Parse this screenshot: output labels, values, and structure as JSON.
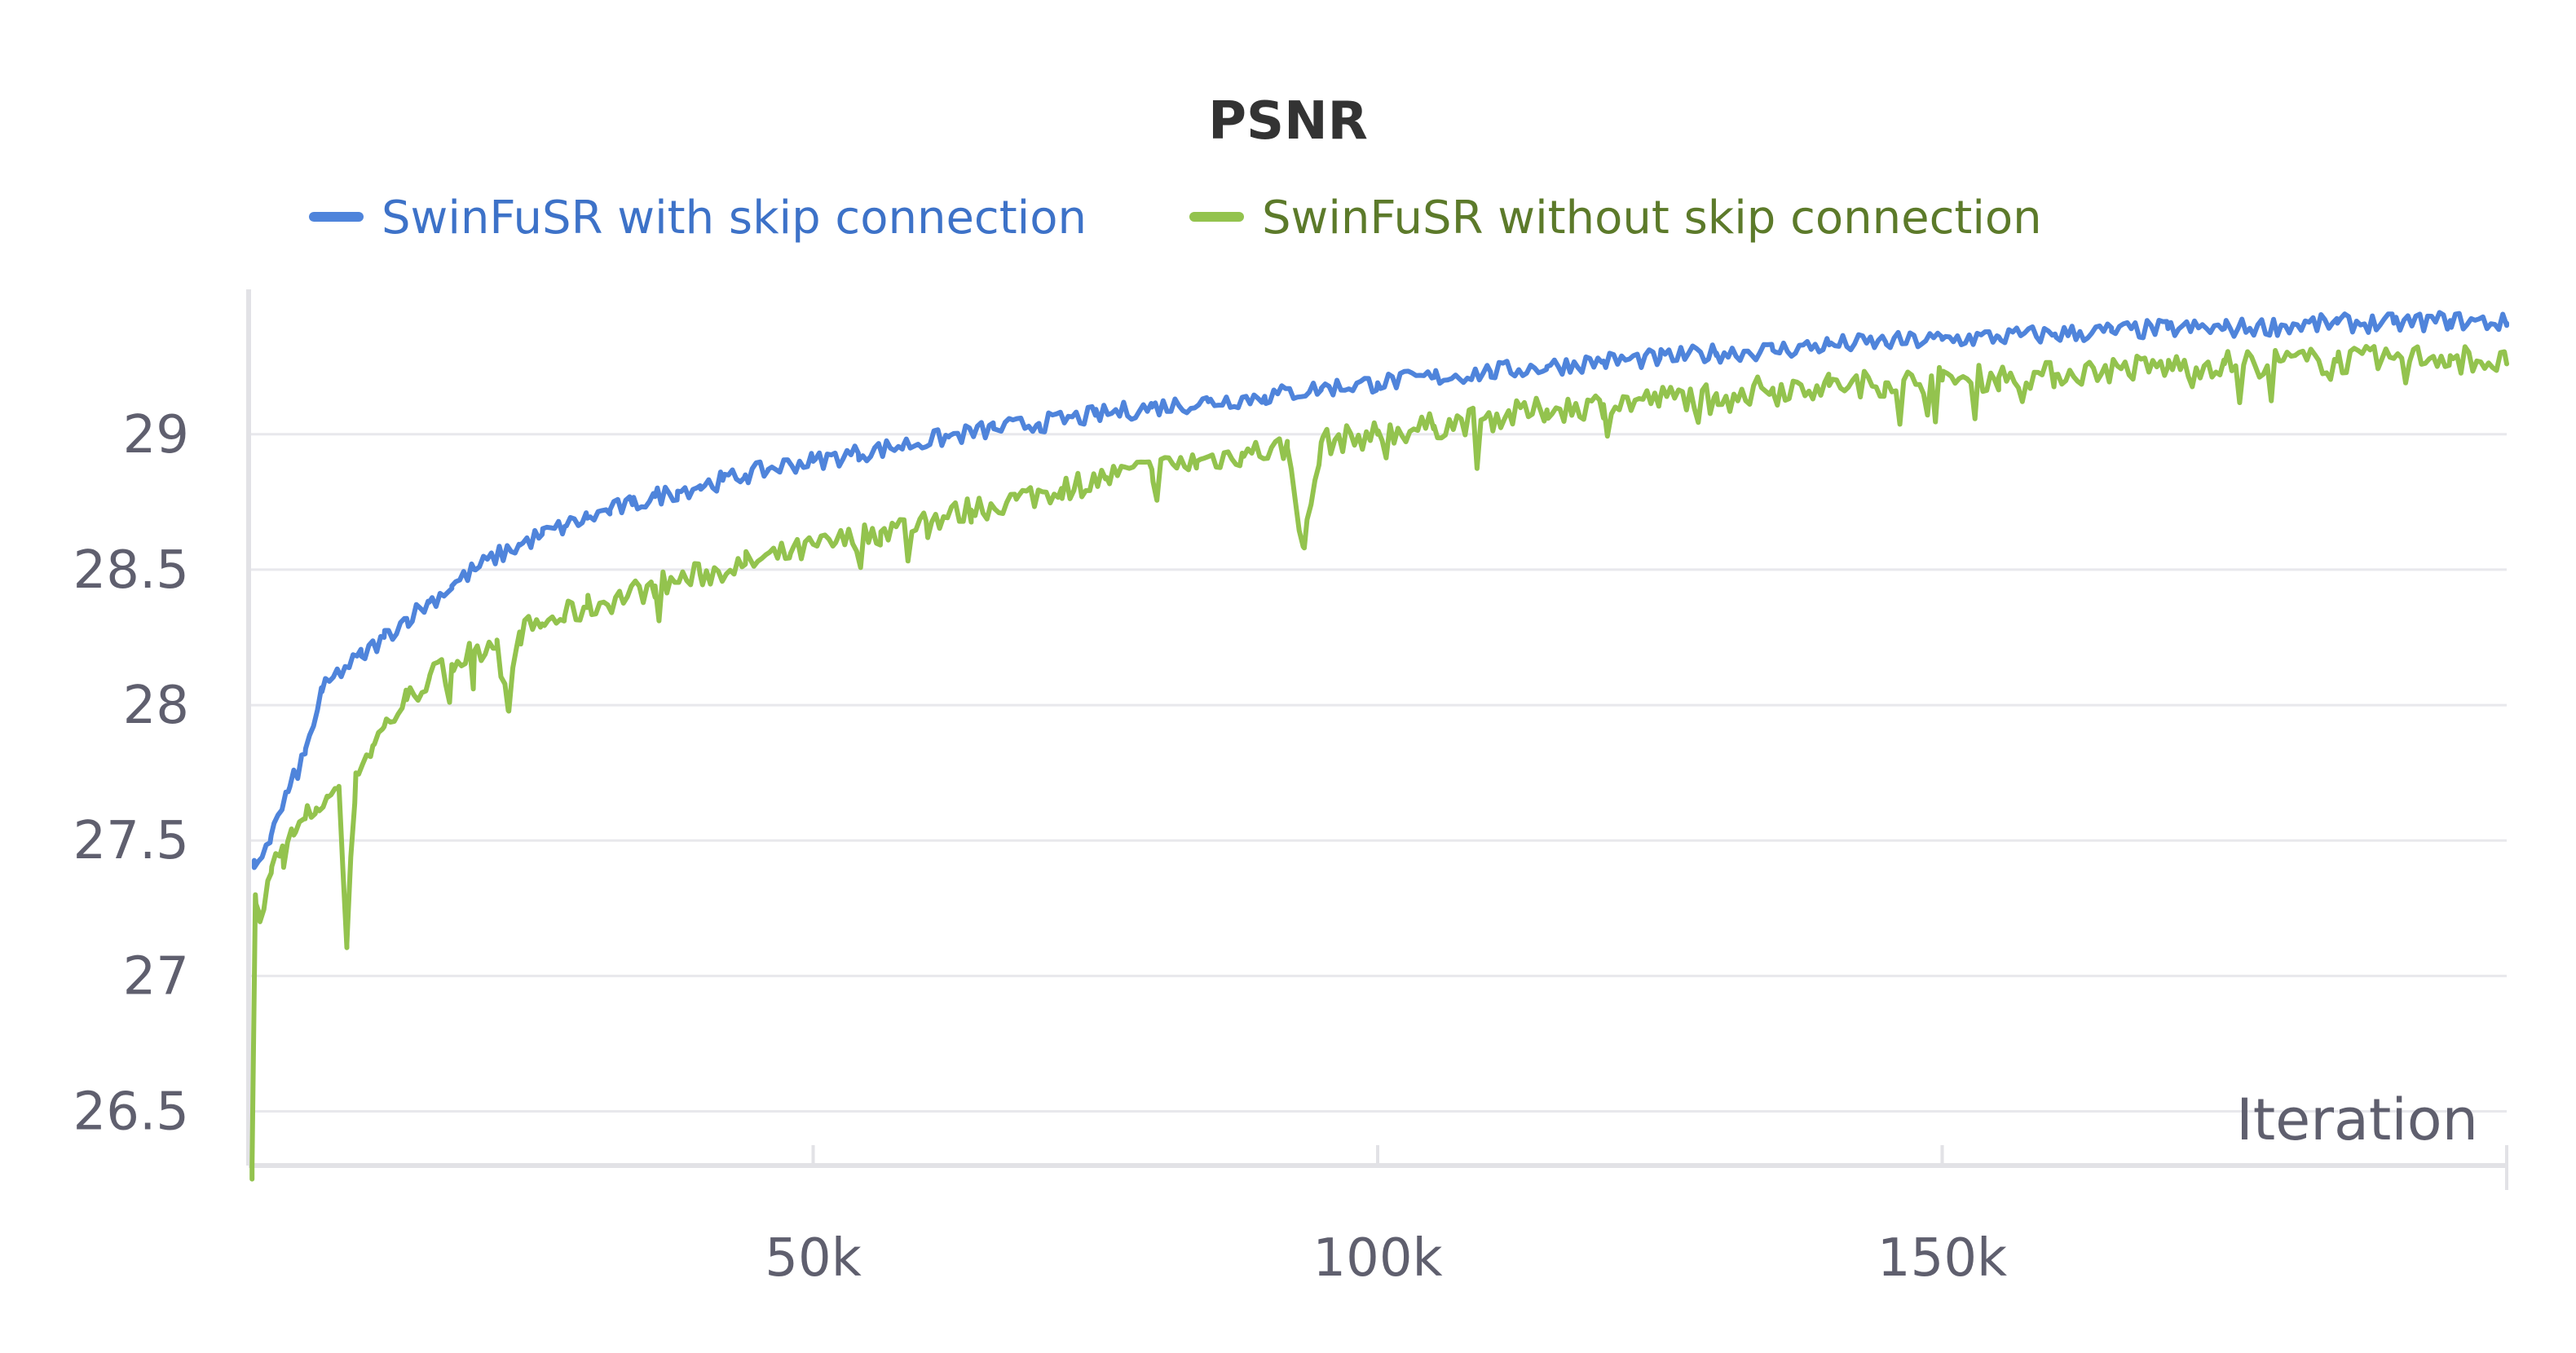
{
  "chart_data": {
    "type": "line",
    "title": "PSNR",
    "xlabel": "Iteration",
    "ylabel": "",
    "xlim": [
      0,
      200000
    ],
    "ylim": [
      26.3,
      29.55
    ],
    "x_ticks": [
      50000,
      100000,
      150000
    ],
    "x_tick_labels": [
      "50k",
      "100k",
      "150k"
    ],
    "y_ticks": [
      26.5,
      27,
      27.5,
      28,
      28.5,
      29
    ],
    "y_tick_labels": [
      "26.5",
      "27",
      "27.5",
      "28",
      "28.5",
      "29"
    ],
    "grid": "horizontal",
    "legend_position": "top",
    "series": [
      {
        "name": "SwinFuSR with skip connection",
        "color": "#4f84db",
        "x": [
          500,
          2000,
          3500,
          5000,
          6500,
          8000,
          10000,
          12000,
          14000,
          16000,
          18000,
          20000,
          22000,
          24000,
          26000,
          28000,
          30000,
          32000,
          34000,
          36000,
          38000,
          40000,
          42000,
          44000,
          46000,
          48000,
          50000,
          54000,
          58000,
          62000,
          66000,
          70000,
          75000,
          80000,
          85000,
          90000,
          95000,
          100000,
          105000,
          110000,
          115000,
          120000,
          125000,
          130000,
          135000,
          140000,
          145000,
          150000,
          155000,
          160000,
          165000,
          170000,
          175000,
          180000,
          185000,
          190000,
          195000,
          200000
        ],
        "values": [
          27.4,
          27.52,
          27.68,
          27.82,
          28.05,
          28.12,
          28.18,
          28.25,
          28.32,
          28.38,
          28.44,
          28.5,
          28.55,
          28.59,
          28.63,
          28.66,
          28.69,
          28.72,
          28.74,
          28.77,
          28.79,
          28.81,
          28.83,
          28.85,
          28.87,
          28.89,
          28.9,
          28.93,
          28.96,
          28.99,
          29.02,
          29.04,
          29.07,
          29.1,
          29.12,
          29.14,
          29.17,
          29.19,
          29.21,
          29.23,
          29.25,
          29.27,
          29.28,
          29.3,
          29.31,
          29.33,
          29.34,
          29.35,
          29.36,
          29.37,
          29.38,
          29.39,
          29.39,
          29.4,
          29.41,
          29.41,
          29.42,
          29.41
        ]
      },
      {
        "name": "SwinFuSR without skip connection",
        "color": "#93c34e",
        "x": [
          300,
          600,
          1000,
          2000,
          3000,
          4000,
          5000,
          6000,
          7000,
          8000,
          8700,
          9500,
          11000,
          12000,
          14000,
          16000,
          18000,
          20000,
          22000,
          23000,
          24000,
          26000,
          28000,
          30000,
          33000,
          36000,
          40000,
          44000,
          48000,
          52000,
          56000,
          60000,
          64000,
          68000,
          72000,
          76000,
          80000,
          84000,
          88000,
          92000,
          93500,
          95000,
          100000,
          105000,
          110000,
          115000,
          120000,
          125000,
          130000,
          135000,
          140000,
          145000,
          150000,
          155000,
          160000,
          165000,
          170000,
          175000,
          180000,
          185000,
          190000,
          195000,
          200000
        ],
        "values": [
          26.3,
          27.3,
          27.2,
          27.38,
          27.48,
          27.52,
          27.58,
          27.62,
          27.66,
          27.7,
          27.12,
          27.75,
          27.85,
          27.92,
          28.02,
          28.1,
          28.15,
          28.2,
          28.24,
          27.98,
          28.27,
          28.3,
          28.33,
          28.36,
          28.4,
          28.44,
          28.48,
          28.52,
          28.56,
          28.6,
          28.64,
          28.68,
          28.72,
          28.76,
          28.8,
          28.84,
          28.87,
          28.9,
          28.93,
          28.95,
          28.58,
          28.97,
          29.0,
          29.03,
          29.06,
          29.09,
          29.11,
          29.13,
          29.15,
          29.17,
          29.18,
          29.19,
          29.2,
          29.21,
          29.22,
          29.24,
          29.25,
          29.26,
          29.27,
          29.27,
          29.28,
          29.29,
          29.26
        ]
      }
    ]
  }
}
